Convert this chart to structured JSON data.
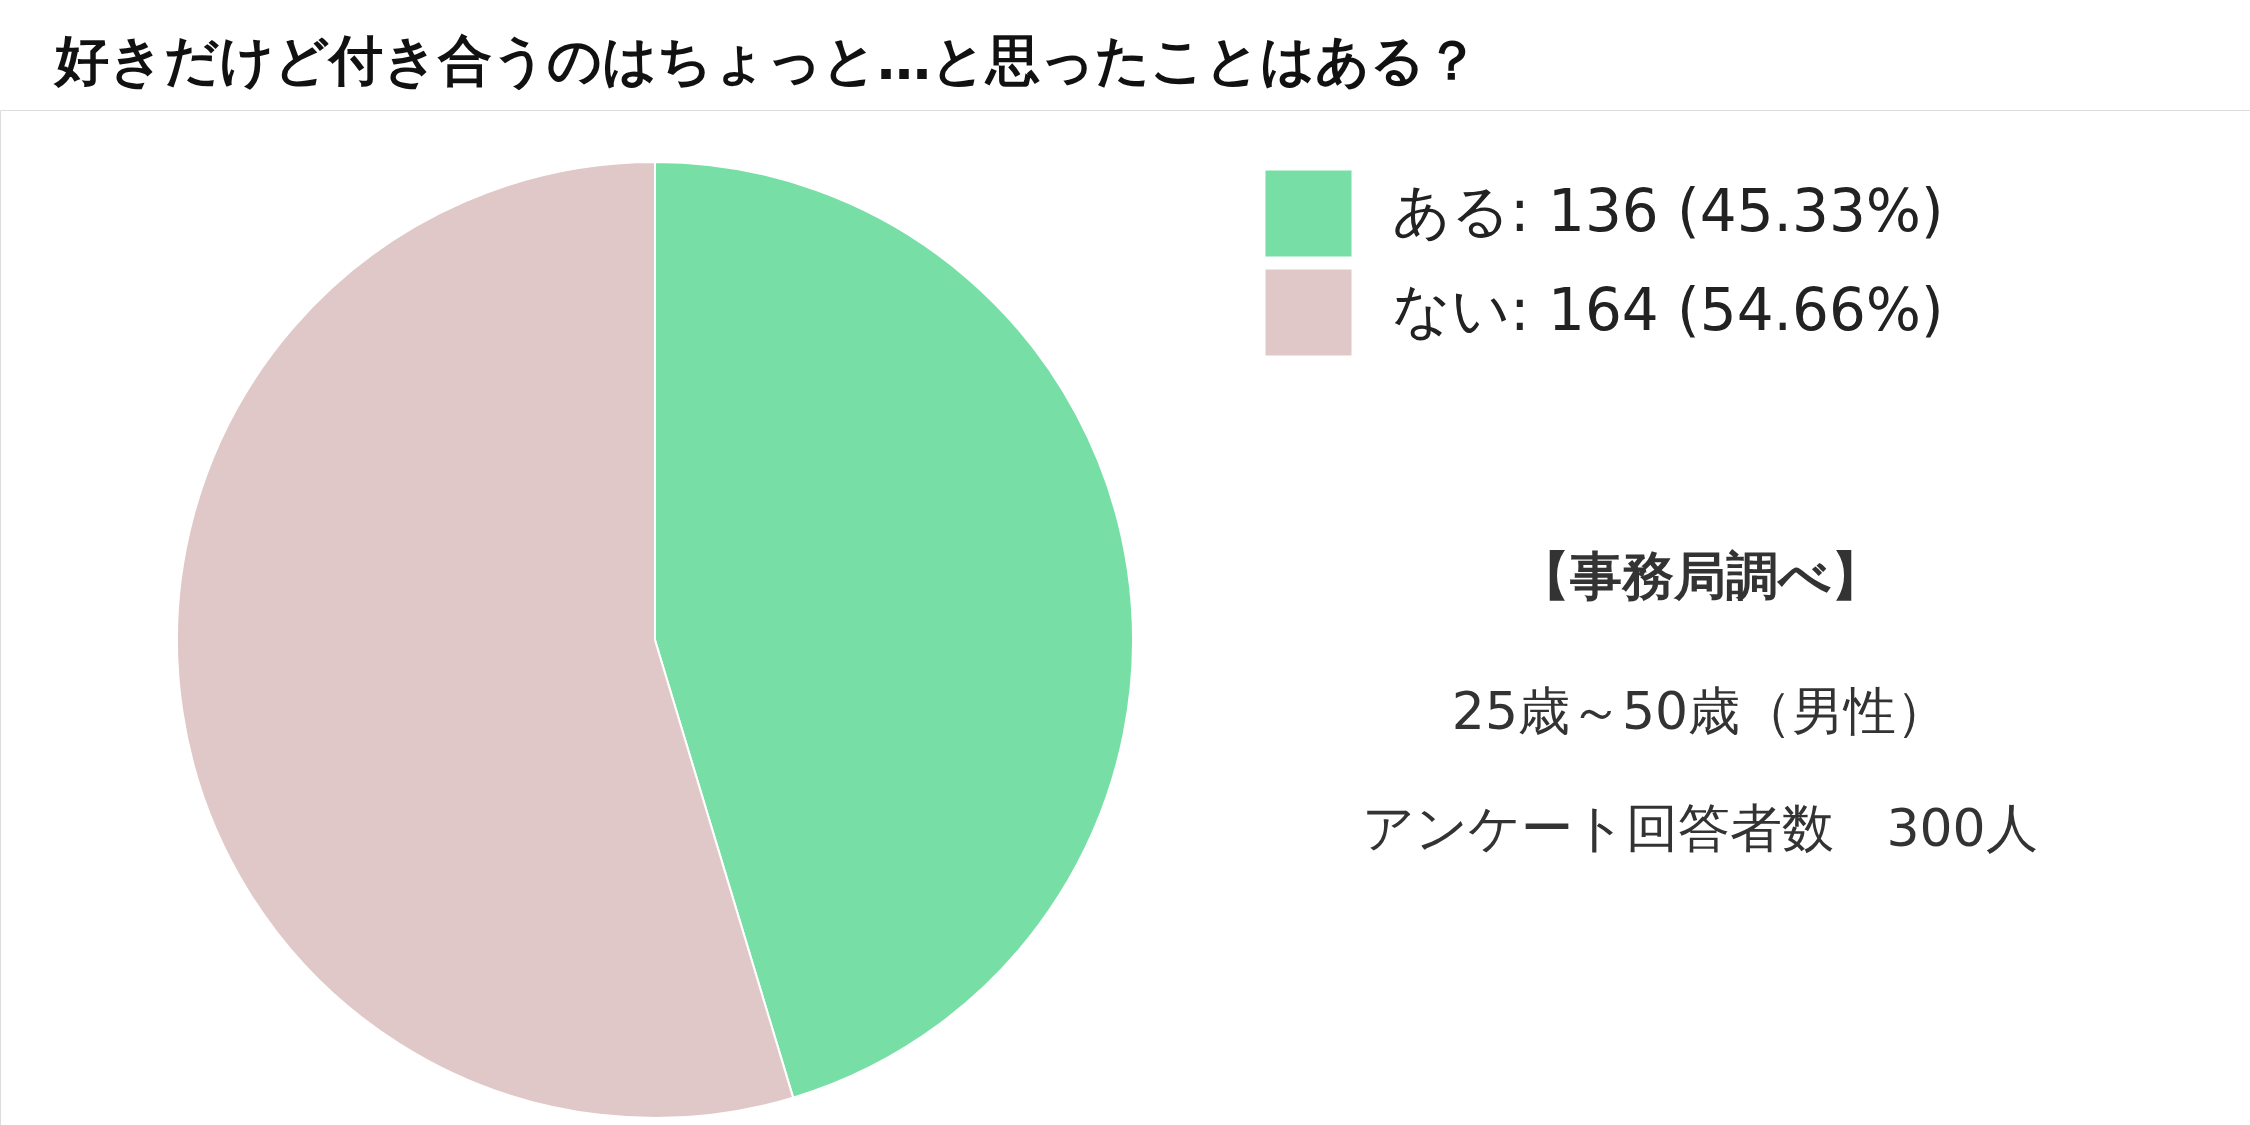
{
  "chart_data": {
    "type": "pie",
    "title": "好きだけど付き合うのはちょっと…と思ったことはある？",
    "categories": [
      "ある",
      "ない"
    ],
    "values": [
      136,
      164
    ],
    "value_labels": [
      "136 (45.33%)",
      "164 (54.66%)"
    ],
    "colors": [
      "#77dfa5",
      "#e0c8c9"
    ],
    "legend": "top right",
    "annotations": [
      "【事務局調べ】",
      "25歳～50歳（男性）",
      "アンケート回答者数　300人"
    ]
  }
}
